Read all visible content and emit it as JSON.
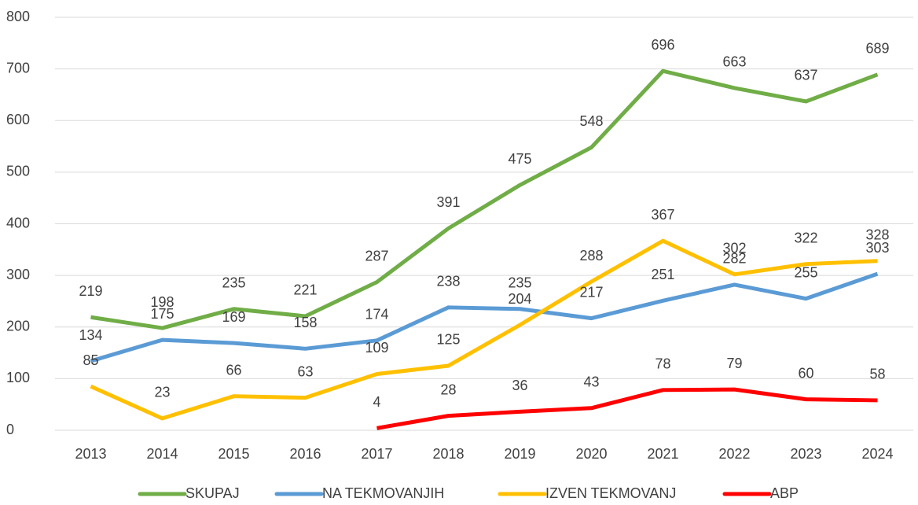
{
  "chart_data": {
    "type": "line",
    "categories": [
      "2013",
      "2014",
      "2015",
      "2016",
      "2017",
      "2018",
      "2019",
      "2020",
      "2021",
      "2022",
      "2023",
      "2024"
    ],
    "series": [
      {
        "name": "SKUPAJ",
        "color": "#70ad47",
        "values": [
          219,
          198,
          235,
          221,
          287,
          391,
          475,
          548,
          696,
          663,
          637,
          689
        ]
      },
      {
        "name": "NA TEKMOVANJIH",
        "color": "#5b9bd5",
        "values": [
          134,
          175,
          169,
          158,
          174,
          238,
          235,
          217,
          251,
          282,
          255,
          303
        ]
      },
      {
        "name": "IZVEN TEKMOVANJ",
        "color": "#ffc000",
        "values": [
          85,
          23,
          66,
          63,
          109,
          125,
          204,
          288,
          367,
          302,
          322,
          328
        ]
      },
      {
        "name": "ABP",
        "color": "#ff0000",
        "values": [
          null,
          null,
          null,
          null,
          4,
          28,
          36,
          43,
          78,
          79,
          60,
          58
        ]
      }
    ],
    "ylim": [
      0,
      800
    ],
    "yticks": [
      0,
      100,
      200,
      300,
      400,
      500,
      600,
      700,
      800
    ],
    "grid": true,
    "legend": "bottom"
  }
}
